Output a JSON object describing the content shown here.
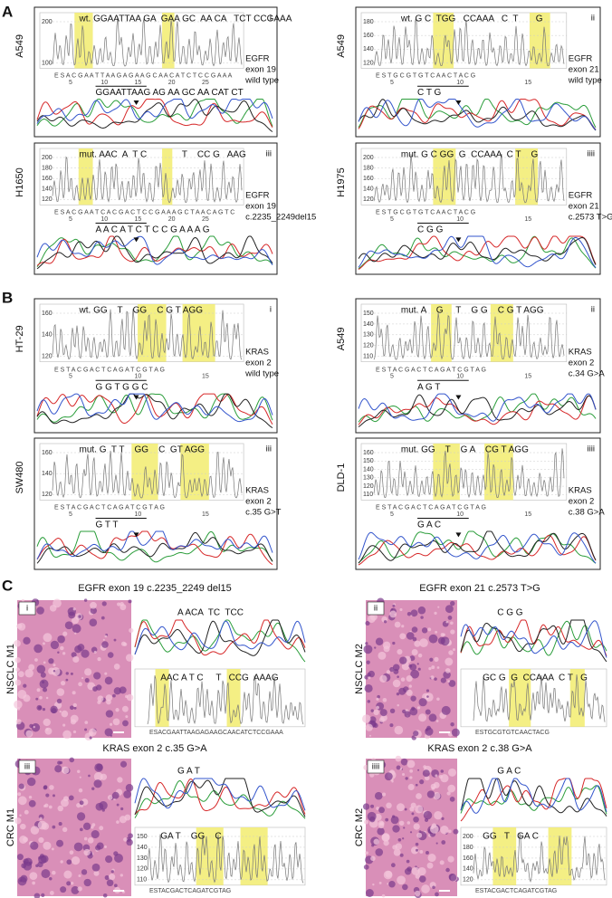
{
  "sections": [
    {
      "label": "A",
      "panels": [
        {
          "sample": "A549",
          "numeral": "i",
          "top": "wt. GGAATTAA GA  GAA GC  AA CA   TCT CCGAAA",
          "index": "E S A C G A A T T A A G A G A A G C A A C A T C T C C G A A A",
          "positions": [
            5,
            10,
            15,
            20,
            25
          ],
          "bottom": "GGAATTAAG AG AA GC AA CAT CT",
          "gene": [
            "EGFR",
            "exon 19",
            "wild type"
          ],
          "yticks": [
            200,
            100
          ]
        },
        {
          "sample": "A549",
          "numeral": "ii",
          "top": "wt. G C  TGG   CCAAA   C  T       G",
          "index": "E S T G C G T G T C A A C T A C G",
          "positions": [
            5,
            10,
            15
          ],
          "bottom": "C T G",
          "gene": [
            "EGFR",
            "exon 21",
            "wild type"
          ],
          "yticks": [
            180,
            160,
            140,
            120
          ]
        },
        {
          "sample": "H1650",
          "numeral": "iii",
          "top": "mut. AAC  A  T C              T    CC G   AAG",
          "index": "E S A C G A A T C A C G A C T C C G A A A G C T A A C A G T C",
          "positions": [
            5,
            10,
            15,
            20,
            25
          ],
          "bottom": "A A C A T C T C C G A A A G",
          "gene": [
            "EGFR",
            "exon 19",
            "c.2235_2249del15"
          ],
          "yticks": [
            200,
            180,
            160,
            140,
            120
          ]
        },
        {
          "sample": "H1975",
          "numeral": "iiii",
          "top": "mut. G C GG  G  CCAAA  C T    G",
          "index": "E S T G C G T G T C A A C T A C G",
          "positions": [
            5,
            10,
            15
          ],
          "bottom": "C G G",
          "gene": [
            "EGFR",
            "exon 21",
            "c.2573 T>G"
          ],
          "yticks": [
            200,
            180,
            160,
            140,
            120
          ]
        }
      ]
    },
    {
      "label": "B",
      "panels": [
        {
          "sample": "HT-29",
          "numeral": "i",
          "top": "wt. GG    T    GG    C G T AGG",
          "index": "E S T A C G A C T C A G A T C G T A G",
          "positions": [
            5,
            10,
            15
          ],
          "bottom": "G G T G G C",
          "gene": [
            "KRAS",
            "exon 2",
            "wild type"
          ],
          "yticks": [
            160,
            140,
            120
          ]
        },
        {
          "sample": "A549",
          "numeral": "ii",
          "top": "mut. A    G     T    G G    C G T AGG",
          "index": "E S T A C G A C T C A G A T C G T A G",
          "positions": [
            5,
            10,
            15
          ],
          "bottom": "A G T",
          "gene": [
            "KRAS",
            "exon 2",
            "c.34 G>A"
          ],
          "yticks": [
            150,
            140,
            130,
            120,
            110
          ]
        },
        {
          "sample": "SW480",
          "numeral": "iii",
          "top": "mut. G  T T    GG    C  GT AGG",
          "index": "E S T A C G A C T C A G A T C G T A G",
          "positions": [
            5,
            10,
            15
          ],
          "bottom": "G T T",
          "gene": [
            "KRAS",
            "exon 2",
            "c.35 G>T"
          ],
          "yticks": [
            160,
            140,
            120
          ]
        },
        {
          "sample": "DLD-1",
          "numeral": "iiii",
          "top": "mut. GG    T    G A    CG T AGG",
          "index": "E S T A C G A C T C A G A T C G T A G",
          "positions": [
            5,
            10,
            15
          ],
          "bottom": "G A C",
          "gene": [
            "KRAS",
            "exon 2",
            "c.38 G>A"
          ],
          "yticks": [
            160,
            150,
            140,
            130,
            120,
            110
          ]
        }
      ]
    },
    {
      "label": "C",
      "panels": [
        {
          "title": "EGFR exon 19 c.2235_2249 del15",
          "sample": "NSCLC M1",
          "numeral": "i",
          "upper": "A ACA  TC  TCC",
          "lower": "AAC A T C     T   CCG  AAAG",
          "index": "ESACGAATTAAGAGAAGCAACATCTCCGAAA",
          "yticks": []
        },
        {
          "title": "EGFR exon 21 c.2573 T>G",
          "sample": "NSCLC M2",
          "numeral": "ii",
          "upper": "C G G",
          "lower": "GC G  G  CCAAA  C T   G",
          "index": "ESTGCGTGTCAACTACG",
          "yticks": []
        },
        {
          "title": "KRAS exon 2 c.35 G>A",
          "sample": "CRC M1",
          "numeral": "iii",
          "upper": "G A T",
          "lower": "GA T    GG    C",
          "index": "ESTACGACTCAGATCGTAG",
          "yticks": [
            150,
            140,
            130,
            120,
            110
          ]
        },
        {
          "title": "KRAS exon 2 c.38 G>A",
          "sample": "CRC M2",
          "numeral": "iiii",
          "upper": "G A C",
          "lower": "GG   T   GA C",
          "index": "ESTACGACTCAGATCGTAG",
          "yticks": [
            200,
            180,
            160,
            140,
            120
          ]
        }
      ]
    }
  ]
}
